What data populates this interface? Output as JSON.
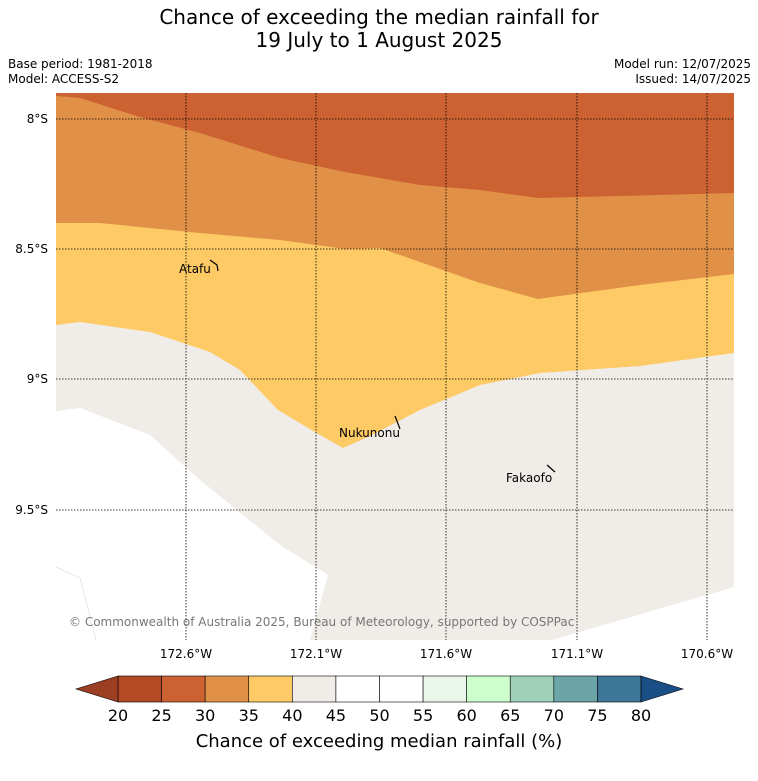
{
  "header": {
    "title_line1": "Chance of exceeding the median rainfall for",
    "title_line2": "19 July to 1 August 2025",
    "base_period": "Base period: 1981-2018",
    "model": "Model: ACCESS-S2",
    "model_run": "Model run: 12/07/2025",
    "issued": "Issued: 14/07/2025"
  },
  "map": {
    "lat_ticks": [
      "8°S",
      "8.5°S",
      "9°S",
      "9.5°S"
    ],
    "lon_ticks": [
      "172.6°W",
      "172.1°W",
      "171.6°W",
      "171.1°W",
      "170.6°W"
    ],
    "places": [
      "Atafu",
      "Nukunonu",
      "Fakaofo"
    ],
    "copyright": "© Commonwealth of Australia 2025, Bureau of Meteorology, supported by COSPPac",
    "band_colors": {
      "20-25": "#b34a23",
      "25-30": "#cc6231",
      "30-35": "#e09147",
      "35-40": "#fdca65",
      "40-45": "#f0ece7"
    }
  },
  "colorbar": {
    "label": "Chance of exceeding median rainfall (%)",
    "ticks": [
      "20",
      "25",
      "30",
      "35",
      "40",
      "45",
      "50",
      "55",
      "60",
      "65",
      "70",
      "75",
      "80"
    ],
    "colors": [
      "#b34a23",
      "#cc6231",
      "#e09147",
      "#fdca65",
      "#f0ece7",
      "#ffffff",
      "#ffffff",
      "#eaf6ea",
      "#ccffcc",
      "#9fd1b9",
      "#6ca5a8",
      "#3e7697"
    ],
    "low_extend_color": "#9b3e22",
    "high_extend_color": "#1a4f86"
  }
}
